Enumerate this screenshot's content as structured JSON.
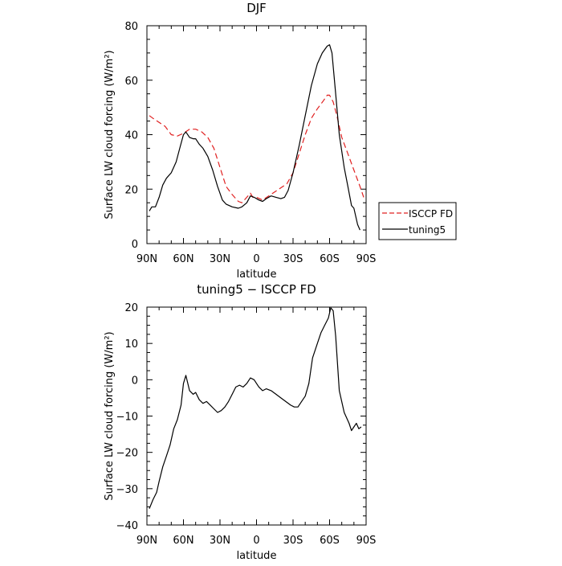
{
  "chart_data": [
    {
      "type": "line",
      "title": "DJF",
      "xlabel": "latitude",
      "ylabel": "Surface LW cloud forcing (W/m²)",
      "xlim": [
        -90,
        90
      ],
      "ylim": [
        0,
        80
      ],
      "x_tick_labels": [
        "90N",
        "60N",
        "30N",
        "0",
        "30S",
        "60S",
        "90S"
      ],
      "y_tick_labels": [
        "0",
        "20",
        "40",
        "60",
        "80"
      ],
      "grid": false,
      "legend_position": "right, outside plot area",
      "series": [
        {
          "name": "ISCCP FD",
          "color": "#e02020",
          "dash": "dashed",
          "points": [
            [
              -88,
              47
            ],
            [
              -85,
              46
            ],
            [
              -80,
              44.5
            ],
            [
              -75,
              43
            ],
            [
              -70,
              40
            ],
            [
              -65,
              39.5
            ],
            [
              -60,
              40.5
            ],
            [
              -55,
              42
            ],
            [
              -50,
              42
            ],
            [
              -45,
              41
            ],
            [
              -40,
              39
            ],
            [
              -35,
              35
            ],
            [
              -30,
              28
            ],
            [
              -25,
              21
            ],
            [
              -20,
              18
            ],
            [
              -15,
              15.5
            ],
            [
              -12,
              15
            ],
            [
              -8,
              17
            ],
            [
              -5,
              18.5
            ],
            [
              -3,
              17
            ],
            [
              0,
              17
            ],
            [
              5,
              16
            ],
            [
              10,
              17.5
            ],
            [
              15,
              19
            ],
            [
              20,
              20.5
            ],
            [
              25,
              22
            ],
            [
              30,
              26
            ],
            [
              35,
              33
            ],
            [
              40,
              40
            ],
            [
              45,
              46
            ],
            [
              50,
              49.5
            ],
            [
              55,
              52.5
            ],
            [
              58,
              54.5
            ],
            [
              60,
              54.5
            ],
            [
              63,
              52
            ],
            [
              66,
              47
            ],
            [
              70,
              39
            ],
            [
              75,
              33
            ],
            [
              80,
              27
            ],
            [
              85,
              21
            ],
            [
              88,
              17
            ]
          ]
        },
        {
          "name": "tuning5",
          "color": "#000000",
          "dash": "solid",
          "points": [
            [
              -88,
              12
            ],
            [
              -86,
              13.5
            ],
            [
              -83,
              13.5
            ],
            [
              -80,
              17
            ],
            [
              -77,
              21.5
            ],
            [
              -74,
              24
            ],
            [
              -70,
              26
            ],
            [
              -66,
              30
            ],
            [
              -63,
              35
            ],
            [
              -60,
              40
            ],
            [
              -58,
              41
            ],
            [
              -55,
              39
            ],
            [
              -52,
              38.5
            ],
            [
              -50,
              38.5
            ],
            [
              -47,
              36.5
            ],
            [
              -44,
              35
            ],
            [
              -40,
              32
            ],
            [
              -36,
              27
            ],
            [
              -32,
              21
            ],
            [
              -28,
              16
            ],
            [
              -25,
              14.5
            ],
            [
              -20,
              13.5
            ],
            [
              -15,
              13
            ],
            [
              -12,
              13.5
            ],
            [
              -8,
              15
            ],
            [
              -5,
              17.5
            ],
            [
              -2,
              17
            ],
            [
              2,
              16
            ],
            [
              5,
              15.5
            ],
            [
              8,
              16.5
            ],
            [
              12,
              17.5
            ],
            [
              16,
              17
            ],
            [
              20,
              16.5
            ],
            [
              23,
              17
            ],
            [
              26,
              19.5
            ],
            [
              30,
              26
            ],
            [
              35,
              36
            ],
            [
              40,
              47
            ],
            [
              45,
              58
            ],
            [
              50,
              66
            ],
            [
              54,
              70
            ],
            [
              58,
              72.5
            ],
            [
              60,
              73
            ],
            [
              62,
              70
            ],
            [
              65,
              55
            ],
            [
              68,
              40
            ],
            [
              72,
              28
            ],
            [
              75,
              21
            ],
            [
              78,
              14
            ],
            [
              80,
              13
            ],
            [
              83,
              7
            ],
            [
              85,
              5
            ]
          ]
        }
      ]
    },
    {
      "type": "line",
      "title": "tuning5 − ISCCP FD",
      "xlabel": "latitude",
      "ylabel": "Surface LW cloud forcing (W/m²)",
      "xlim": [
        -90,
        90
      ],
      "ylim": [
        -40,
        20
      ],
      "x_tick_labels": [
        "90N",
        "60N",
        "30N",
        "0",
        "30S",
        "60S",
        "90S"
      ],
      "y_tick_labels": [
        "−40",
        "−30",
        "−20",
        "−10",
        "0",
        "10",
        "20"
      ],
      "grid": false,
      "series": [
        {
          "color": "#000000",
          "dash": "solid",
          "points": [
            [
              -88,
              -35.5
            ],
            [
              -85,
              -33
            ],
            [
              -82,
              -31
            ],
            [
              -80,
              -28
            ],
            [
              -77,
              -24
            ],
            [
              -74,
              -21
            ],
            [
              -71,
              -18
            ],
            [
              -68,
              -13.5
            ],
            [
              -65,
              -11
            ],
            [
              -62,
              -7
            ],
            [
              -60,
              -1
            ],
            [
              -58,
              1.2
            ],
            [
              -55,
              -3
            ],
            [
              -52,
              -4
            ],
            [
              -50,
              -3.5
            ],
            [
              -47,
              -5.5
            ],
            [
              -44,
              -6.5
            ],
            [
              -41,
              -6
            ],
            [
              -38,
              -7
            ],
            [
              -35,
              -8
            ],
            [
              -32,
              -9
            ],
            [
              -29,
              -8.5
            ],
            [
              -26,
              -7.5
            ],
            [
              -23,
              -6
            ],
            [
              -20,
              -4
            ],
            [
              -17,
              -2
            ],
            [
              -14,
              -1.5
            ],
            [
              -11,
              -2
            ],
            [
              -8,
              -1
            ],
            [
              -5,
              0.5
            ],
            [
              -2,
              0
            ],
            [
              0,
              -1
            ],
            [
              2,
              -2
            ],
            [
              5,
              -3
            ],
            [
              8,
              -2.5
            ],
            [
              12,
              -3
            ],
            [
              16,
              -4
            ],
            [
              20,
              -5
            ],
            [
              24,
              -6
            ],
            [
              28,
              -7
            ],
            [
              31,
              -7.5
            ],
            [
              34,
              -7.5
            ],
            [
              37,
              -6
            ],
            [
              40,
              -4.5
            ],
            [
              43,
              -1
            ],
            [
              46,
              6
            ],
            [
              50,
              10
            ],
            [
              53,
              13
            ],
            [
              56,
              15
            ],
            [
              59,
              17
            ],
            [
              61,
              19.8
            ],
            [
              63,
              19
            ],
            [
              65,
              12
            ],
            [
              68,
              -3
            ],
            [
              72,
              -9
            ],
            [
              76,
              -12
            ],
            [
              78,
              -14
            ],
            [
              80,
              -13
            ],
            [
              82,
              -12
            ],
            [
              84,
              -13.5
            ],
            [
              86,
              -13
            ]
          ]
        }
      ]
    }
  ]
}
